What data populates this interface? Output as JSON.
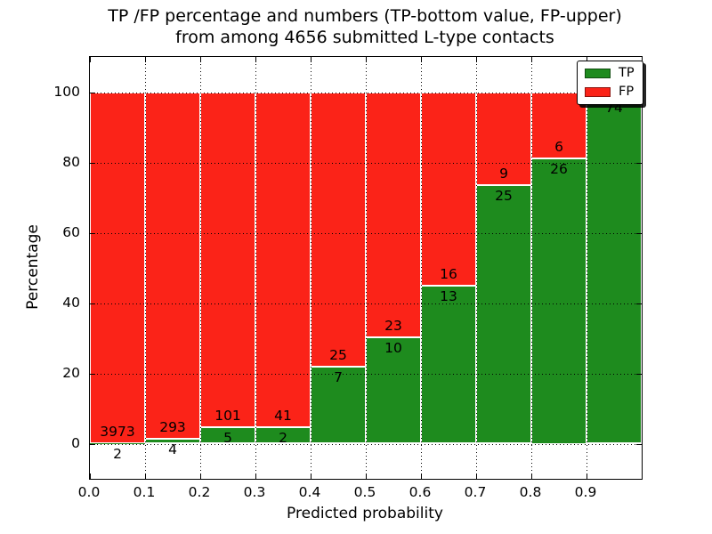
{
  "figure": {
    "title_line1": "TP /FP percentage and numbers (TP-bottom value, FP-upper)",
    "title_line2": "from among 4656 submitted L-type contacts"
  },
  "chart_data": {
    "type": "bar",
    "stacked": true,
    "normalized_to_percent": true,
    "title": "TP /FP percentage and numbers (TP-bottom value, FP-upper) from among 4656 submitted L-type contacts",
    "total_contacts": 4656,
    "xlabel": "Predicted probability",
    "ylabel": "Percentage",
    "xlim": [
      0.0,
      1.0
    ],
    "ylim": [
      -10,
      110
    ],
    "x_tick_labels": [
      "0.0",
      "0.1",
      "0.2",
      "0.3",
      "0.4",
      "0.5",
      "0.6",
      "0.7",
      "0.8",
      "0.9"
    ],
    "y_tick_values": [
      0,
      20,
      40,
      60,
      80,
      100
    ],
    "grid": "dotted-black-both-axes",
    "colors": {
      "tp": "#1e8b1e",
      "fp": "#fb2318",
      "bar_edge": "#ffffff",
      "background": "#ffffff"
    },
    "legend": {
      "position": "upper-right",
      "entries": [
        {
          "label": "TP",
          "color": "#1e8b1e"
        },
        {
          "label": "FP",
          "color": "#fb2318"
        }
      ]
    },
    "bins": [
      {
        "range": [
          0.0,
          0.1
        ],
        "tp_label": "2",
        "fp_label": "3973",
        "tp_count": 2,
        "fp_count": 3973,
        "tp_pct": 0.05
      },
      {
        "range": [
          0.1,
          0.2
        ],
        "tp_label": "4",
        "fp_label": "293",
        "tp_count": 4,
        "fp_count": 293,
        "tp_pct": 1.35
      },
      {
        "range": [
          0.2,
          0.3
        ],
        "tp_label": "5",
        "fp_label": "101",
        "tp_count": 5,
        "fp_count": 101,
        "tp_pct": 4.72
      },
      {
        "range": [
          0.3,
          0.4
        ],
        "tp_label": "2",
        "fp_label": "41",
        "tp_count": 2,
        "fp_count": 41,
        "tp_pct": 4.65
      },
      {
        "range": [
          0.4,
          0.5
        ],
        "tp_label": "7",
        "fp_label": "25",
        "tp_count": 7,
        "fp_count": 25,
        "tp_pct": 21.88
      },
      {
        "range": [
          0.5,
          0.6
        ],
        "tp_label": "10",
        "fp_label": "23",
        "tp_count": 10,
        "fp_count": 23,
        "tp_pct": 30.3
      },
      {
        "range": [
          0.6,
          0.7
        ],
        "tp_label": "13",
        "fp_label": "16",
        "tp_count": 13,
        "fp_count": 16,
        "tp_pct": 44.83
      },
      {
        "range": [
          0.7,
          0.8
        ],
        "tp_label": "25",
        "fp_label": "9",
        "tp_count": 25,
        "fp_count": 9,
        "tp_pct": 73.53
      },
      {
        "range": [
          0.8,
          0.9
        ],
        "tp_label": "26",
        "fp_label": "6",
        "tp_count": 26,
        "fp_count": 6,
        "tp_pct": 81.25
      },
      {
        "range": [
          0.9,
          1.0
        ],
        "tp_label": "74",
        "fp_label": "",
        "tp_count": 74,
        "fp_count": null,
        "tp_pct": 98.7,
        "fp_label_hidden_behind_legend": true
      }
    ]
  }
}
